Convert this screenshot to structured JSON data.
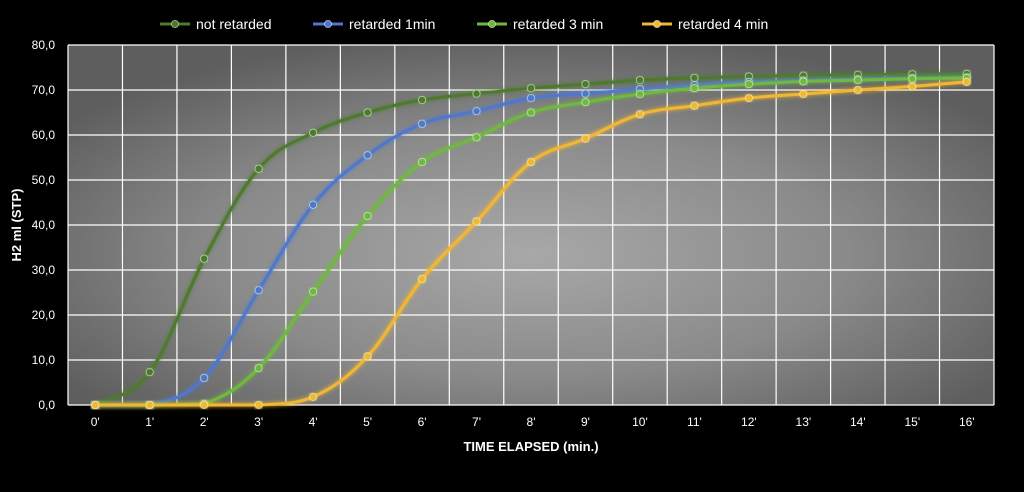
{
  "chart_data": {
    "type": "line",
    "title": "",
    "xlabel": "TIME ELAPSED (min.)",
    "ylabel": "H2 ml (STP)",
    "categories": [
      "0'",
      "1'",
      "2'",
      "3'",
      "4'",
      "5'",
      "6'",
      "7'",
      "8'",
      "9'",
      "10'",
      "11'",
      "12'",
      "13'",
      "14'",
      "15'",
      "16'"
    ],
    "x": [
      0,
      1,
      2,
      3,
      4,
      5,
      6,
      7,
      8,
      9,
      10,
      11,
      12,
      13,
      14,
      15,
      16
    ],
    "ylim": [
      0,
      80
    ],
    "yticks": [
      "0,0",
      "10,0",
      "20,0",
      "30,0",
      "40,0",
      "50,0",
      "60,0",
      "70,0",
      "80,0"
    ],
    "grid": true,
    "legend_position": "top",
    "smooth": true,
    "series": [
      {
        "name": "not retarded",
        "color": "#4d7a2e",
        "values": [
          0,
          7.3,
          32.5,
          52.5,
          60.5,
          65,
          67.8,
          69.2,
          70.4,
          71.3,
          72.2,
          72.7,
          73,
          73.2,
          73.4,
          73.5,
          73.6
        ]
      },
      {
        "name": "retarded 1min",
        "color": "#4f78cc",
        "values": [
          0,
          0,
          6,
          25.5,
          44.5,
          55.5,
          62.5,
          65.3,
          68.2,
          69.2,
          70.2,
          71.1,
          71.8,
          72.1,
          72.4,
          72.6,
          72.8
        ]
      },
      {
        "name": "retarded 3 min",
        "color": "#6fb83f",
        "values": [
          0,
          0,
          0.3,
          8.2,
          25.2,
          42,
          54,
          59.5,
          65,
          67.3,
          69.1,
          70.4,
          71.3,
          71.9,
          72.2,
          72.5,
          72.7
        ]
      },
      {
        "name": "retarded 4 min",
        "color": "#f2b733",
        "values": [
          0,
          0,
          0,
          0,
          1.8,
          10.8,
          28,
          40.8,
          54,
          59.2,
          64.6,
          66.5,
          68.2,
          69.1,
          70,
          70.8,
          71.8
        ]
      }
    ]
  }
}
